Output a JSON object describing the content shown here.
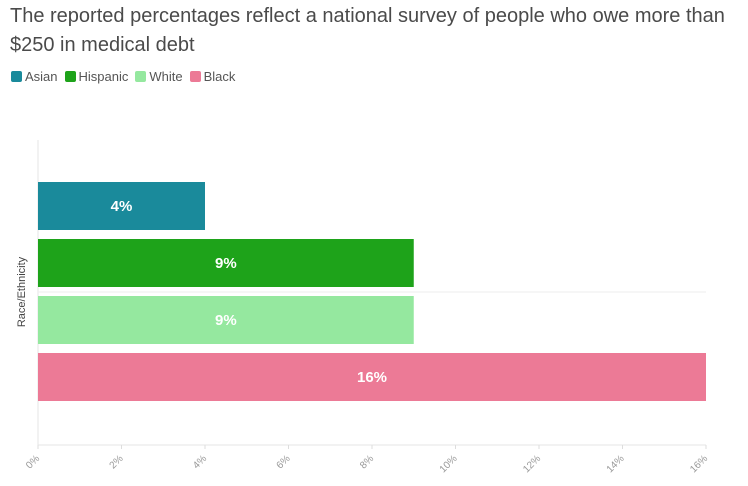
{
  "chart_data": {
    "type": "bar",
    "orientation": "horizontal",
    "title": "The reported percentages reflect a national survey of people who owe more than $250 in medical debt",
    "ylabel": "Race/Ethnicity",
    "xlabel": "",
    "xlim": [
      0,
      16
    ],
    "xticks": [
      "0%",
      "2%",
      "4%",
      "6%",
      "8%",
      "10%",
      "12%",
      "14%",
      "16%"
    ],
    "legend_position": "top-left",
    "series": [
      {
        "name": "Asian",
        "value": 4,
        "label": "4%",
        "color": "#1a8a9b"
      },
      {
        "name": "Hispanic",
        "value": 9,
        "label": "9%",
        "color": "#1ea31a"
      },
      {
        "name": "White",
        "value": 9,
        "label": "9%",
        "color": "#95e89f"
      },
      {
        "name": "Black",
        "value": 16,
        "label": "16%",
        "color": "#ec7a96"
      }
    ]
  }
}
